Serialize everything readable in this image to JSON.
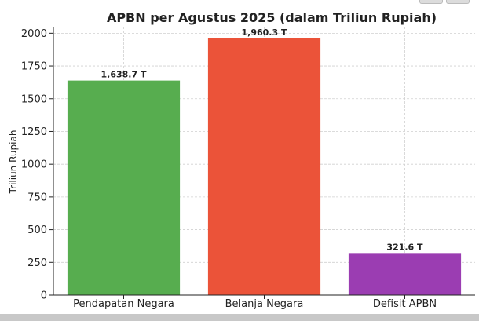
{
  "chart_data": {
    "type": "bar",
    "title": "APBN per Agustus 2025 (dalam Triliun Rupiah)",
    "xlabel": "",
    "ylabel": "Triliun Rupiah",
    "categories": [
      "Pendapatan Negara",
      "Belanja Negara",
      "Defisit APBN"
    ],
    "values": [
      1638.7,
      1960.3,
      321.6
    ],
    "data_labels": [
      "1,638.7 T",
      "1,960.3 T",
      "321.6 T"
    ],
    "colors": [
      "#57ad4f",
      "#eb5339",
      "#9b3db2"
    ],
    "ylim": [
      0,
      2050
    ],
    "yticks": [
      0,
      250,
      500,
      750,
      1000,
      1250,
      1500,
      1750,
      2000
    ],
    "grid": true
  }
}
